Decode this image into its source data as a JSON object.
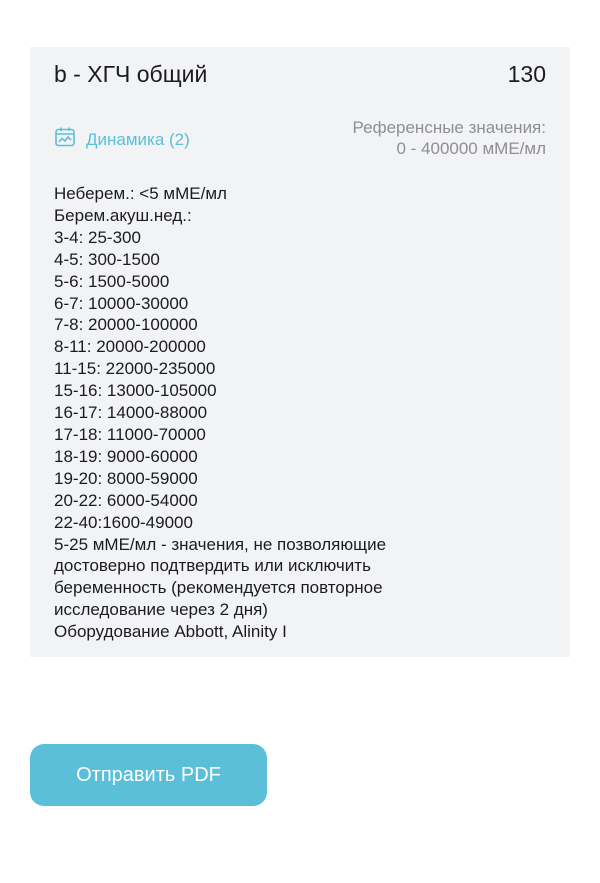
{
  "result": {
    "title": "b - ХГЧ общий",
    "value": "130",
    "dynamics_label": "Динамика (2)",
    "reference_label": "Референсные значения:",
    "reference_range": "0 - 400000 мМЕ/мл",
    "notes": [
      "Неберем.: <5 мМЕ/мл",
      "Берем.акуш.нед.:",
      "3-4: 25-300",
      "4-5: 300-1500",
      "5-6: 1500-5000",
      "6-7: 10000-30000",
      "7-8: 20000-100000",
      "8-11: 20000-200000",
      "11-15: 22000-235000",
      "15-16: 13000-105000",
      "16-17: 14000-88000",
      "17-18: 11000-70000",
      "18-19: 9000-60000",
      "19-20: 8000-59000",
      "20-22: 6000-54000",
      "22-40:1600-49000",
      "5-25 мМЕ/мл - значения, не позволяющие",
      "достоверно подтвердить или исключить",
      "беременность (рекомендуется повторное",
      "исследование через 2 дня)",
      "Оборудование Abbott, Alinity I"
    ]
  },
  "send_pdf_label": "Отправить PDF",
  "colors": {
    "accent": "#5bbfd9",
    "card_bg": "#f2f3f4",
    "muted": "#8e8e93"
  }
}
